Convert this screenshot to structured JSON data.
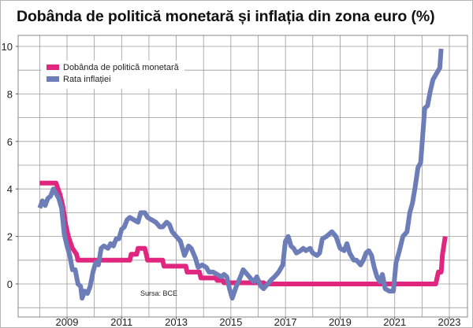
{
  "chart_data": {
    "type": "line",
    "title": "Dobânda de politică monetară și inflația din zona euro (%)",
    "xlabel": "",
    "ylabel": "",
    "xlim": [
      2007.8,
      2023.3
    ],
    "ylim": [
      -1.7,
      10.4
    ],
    "grid": true,
    "legend_position": "top-left",
    "x_ticks": [
      2009,
      2011,
      2013,
      2015,
      2017,
      2019,
      2021,
      2023
    ],
    "x_tick_labels": [
      "2009",
      "2011",
      "2013",
      "2015",
      "2017",
      "2019",
      "2021",
      "2023"
    ],
    "y_ticks": [
      0,
      2,
      4,
      6,
      8,
      10
    ],
    "y_tick_labels": [
      "0",
      "2",
      "4",
      "6",
      "8",
      "10"
    ],
    "annotation": "Sursa: BCE",
    "series": [
      {
        "name": "Dobânda de politică monetară",
        "color": "#e0267f",
        "points": [
          [
            2008.0,
            4.25
          ],
          [
            2008.6,
            4.25
          ],
          [
            2008.75,
            3.75
          ],
          [
            2008.85,
            3.25
          ],
          [
            2008.95,
            2.5
          ],
          [
            2009.05,
            2.0
          ],
          [
            2009.2,
            1.5
          ],
          [
            2009.35,
            1.25
          ],
          [
            2009.4,
            1.0
          ],
          [
            2011.3,
            1.0
          ],
          [
            2011.35,
            1.25
          ],
          [
            2011.55,
            1.25
          ],
          [
            2011.6,
            1.5
          ],
          [
            2011.85,
            1.5
          ],
          [
            2011.9,
            1.25
          ],
          [
            2011.95,
            1.0
          ],
          [
            2012.5,
            1.0
          ],
          [
            2012.55,
            0.75
          ],
          [
            2013.35,
            0.75
          ],
          [
            2013.4,
            0.5
          ],
          [
            2013.85,
            0.5
          ],
          [
            2013.9,
            0.25
          ],
          [
            2014.45,
            0.25
          ],
          [
            2014.5,
            0.15
          ],
          [
            2014.7,
            0.15
          ],
          [
            2014.75,
            0.05
          ],
          [
            2016.2,
            0.05
          ],
          [
            2016.25,
            0.0
          ],
          [
            2022.5,
            0.0
          ],
          [
            2022.6,
            0.5
          ],
          [
            2022.7,
            0.5
          ],
          [
            2022.75,
            1.25
          ],
          [
            2022.85,
            2.0
          ]
        ]
      },
      {
        "name": "Rata inflației",
        "color": "#6c7db8",
        "points": [
          [
            2008.0,
            3.2
          ],
          [
            2008.1,
            3.5
          ],
          [
            2008.2,
            3.3
          ],
          [
            2008.3,
            3.6
          ],
          [
            2008.4,
            3.7
          ],
          [
            2008.5,
            4.0
          ],
          [
            2008.6,
            3.8
          ],
          [
            2008.7,
            3.6
          ],
          [
            2008.8,
            3.2
          ],
          [
            2008.9,
            2.1
          ],
          [
            2009.0,
            1.6
          ],
          [
            2009.1,
            1.2
          ],
          [
            2009.2,
            0.6
          ],
          [
            2009.3,
            0.6
          ],
          [
            2009.4,
            0.0
          ],
          [
            2009.5,
            -0.1
          ],
          [
            2009.55,
            -0.6
          ],
          [
            2009.65,
            -0.3
          ],
          [
            2009.75,
            -0.4
          ],
          [
            2009.85,
            -0.1
          ],
          [
            2009.95,
            0.5
          ],
          [
            2010.05,
            0.9
          ],
          [
            2010.15,
            0.8
          ],
          [
            2010.25,
            1.5
          ],
          [
            2010.35,
            1.6
          ],
          [
            2010.5,
            1.5
          ],
          [
            2010.6,
            1.7
          ],
          [
            2010.7,
            1.6
          ],
          [
            2010.8,
            1.9
          ],
          [
            2010.9,
            1.9
          ],
          [
            2011.0,
            2.3
          ],
          [
            2011.1,
            2.4
          ],
          [
            2011.2,
            2.7
          ],
          [
            2011.3,
            2.8
          ],
          [
            2011.45,
            2.7
          ],
          [
            2011.6,
            2.6
          ],
          [
            2011.7,
            3.0
          ],
          [
            2011.85,
            3.0
          ],
          [
            2011.95,
            2.8
          ],
          [
            2012.1,
            2.7
          ],
          [
            2012.25,
            2.6
          ],
          [
            2012.4,
            2.4
          ],
          [
            2012.5,
            2.4
          ],
          [
            2012.65,
            2.6
          ],
          [
            2012.75,
            2.5
          ],
          [
            2012.85,
            2.2
          ],
          [
            2013.0,
            2.0
          ],
          [
            2013.15,
            1.8
          ],
          [
            2013.3,
            1.2
          ],
          [
            2013.45,
            1.6
          ],
          [
            2013.55,
            1.5
          ],
          [
            2013.7,
            1.1
          ],
          [
            2013.8,
            0.7
          ],
          [
            2013.95,
            0.8
          ],
          [
            2014.1,
            0.7
          ],
          [
            2014.2,
            0.5
          ],
          [
            2014.35,
            0.5
          ],
          [
            2014.5,
            0.4
          ],
          [
            2014.65,
            0.3
          ],
          [
            2014.75,
            0.4
          ],
          [
            2014.85,
            0.3
          ],
          [
            2014.95,
            -0.2
          ],
          [
            2015.05,
            -0.6
          ],
          [
            2015.2,
            -0.1
          ],
          [
            2015.35,
            0.3
          ],
          [
            2015.45,
            0.6
          ],
          [
            2015.6,
            0.4
          ],
          [
            2015.75,
            0.2
          ],
          [
            2015.85,
            0.1
          ],
          [
            2015.95,
            0.3
          ],
          [
            2016.1,
            -0.1
          ],
          [
            2016.2,
            -0.2
          ],
          [
            2016.35,
            0.0
          ],
          [
            2016.5,
            0.2
          ],
          [
            2016.6,
            0.3
          ],
          [
            2016.75,
            0.5
          ],
          [
            2016.9,
            0.8
          ],
          [
            2017.0,
            1.8
          ],
          [
            2017.1,
            2.0
          ],
          [
            2017.2,
            1.6
          ],
          [
            2017.3,
            1.5
          ],
          [
            2017.4,
            1.3
          ],
          [
            2017.55,
            1.4
          ],
          [
            2017.65,
            1.5
          ],
          [
            2017.75,
            1.4
          ],
          [
            2017.9,
            1.5
          ],
          [
            2018.0,
            1.3
          ],
          [
            2018.15,
            1.2
          ],
          [
            2018.25,
            1.3
          ],
          [
            2018.35,
            1.9
          ],
          [
            2018.5,
            2.0
          ],
          [
            2018.6,
            2.1
          ],
          [
            2018.7,
            2.2
          ],
          [
            2018.85,
            2.0
          ],
          [
            2019.0,
            1.5
          ],
          [
            2019.15,
            1.4
          ],
          [
            2019.25,
            1.7
          ],
          [
            2019.35,
            1.3
          ],
          [
            2019.5,
            1.0
          ],
          [
            2019.6,
            1.0
          ],
          [
            2019.75,
            0.8
          ],
          [
            2019.85,
            1.0
          ],
          [
            2019.95,
            1.3
          ],
          [
            2020.05,
            1.4
          ],
          [
            2020.15,
            1.2
          ],
          [
            2020.25,
            0.7
          ],
          [
            2020.35,
            0.3
          ],
          [
            2020.45,
            0.1
          ],
          [
            2020.55,
            0.4
          ],
          [
            2020.65,
            -0.2
          ],
          [
            2020.8,
            -0.3
          ],
          [
            2020.95,
            -0.3
          ],
          [
            2021.05,
            0.9
          ],
          [
            2021.15,
            1.3
          ],
          [
            2021.3,
            2.0
          ],
          [
            2021.45,
            2.2
          ],
          [
            2021.55,
            3.0
          ],
          [
            2021.65,
            3.4
          ],
          [
            2021.75,
            4.1
          ],
          [
            2021.85,
            4.9
          ],
          [
            2021.95,
            5.1
          ],
          [
            2022.1,
            7.4
          ],
          [
            2022.2,
            7.5
          ],
          [
            2022.3,
            8.1
          ],
          [
            2022.4,
            8.6
          ],
          [
            2022.55,
            8.9
          ],
          [
            2022.65,
            9.1
          ],
          [
            2022.7,
            9.9
          ]
        ]
      }
    ]
  }
}
